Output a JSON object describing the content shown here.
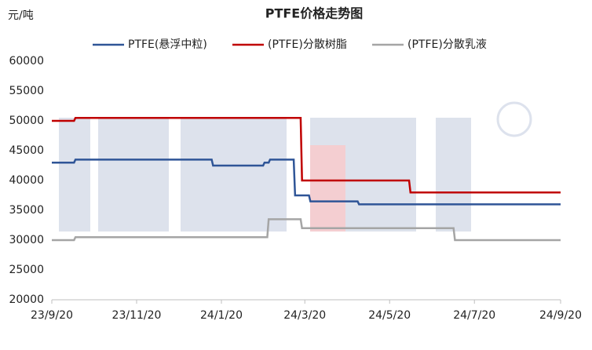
{
  "chart_data": {
    "type": "line",
    "title": "PTFE价格走势图",
    "y_label": "元/吨",
    "xlim": [
      "2023-09-20",
      "2024-09-20"
    ],
    "xticks": [
      {
        "value": "2023-09-20",
        "label": "23/9/20"
      },
      {
        "value": "2023-11-20",
        "label": "23/11/20"
      },
      {
        "value": "2024-01-20",
        "label": "24/1/20"
      },
      {
        "value": "2024-03-20",
        "label": "24/3/20"
      },
      {
        "value": "2024-05-20",
        "label": "24/5/20"
      },
      {
        "value": "2024-07-20",
        "label": "24/7/20"
      },
      {
        "value": "2024-09-20",
        "label": "24/9/20"
      }
    ],
    "ylim": [
      20000,
      60000
    ],
    "yticks": [
      20000,
      25000,
      30000,
      35000,
      40000,
      45000,
      50000,
      55000,
      60000
    ],
    "grid": false,
    "legend": "top",
    "series": [
      {
        "name": "PTFE(悬浮中粒)",
        "color": "#2f5597",
        "x": [
          "2023-09-20",
          "2023-10-06",
          "2023-10-07",
          "2024-01-13",
          "2024-01-14",
          "2024-02-19",
          "2024-02-20",
          "2024-02-23",
          "2024-02-24",
          "2024-03-12",
          "2024-03-13",
          "2024-03-23",
          "2024-03-24",
          "2024-04-27",
          "2024-04-28",
          "2024-09-20"
        ],
        "values": [
          43000,
          43000,
          43500,
          43500,
          42500,
          42500,
          43000,
          43000,
          43500,
          43500,
          37500,
          37500,
          36500,
          36500,
          36000,
          36000
        ]
      },
      {
        "name": "(PTFE)分散树脂",
        "color": "#c00000",
        "x": [
          "2023-09-20",
          "2023-10-06",
          "2023-10-07",
          "2024-03-17",
          "2024-03-18",
          "2024-06-03",
          "2024-06-04",
          "2024-09-20"
        ],
        "values": [
          50000,
          50000,
          50500,
          50500,
          40000,
          40000,
          38000,
          38000
        ]
      },
      {
        "name": "(PTFE)分散乳液",
        "color": "#a5a5a5",
        "x": [
          "2023-09-20",
          "2023-10-06",
          "2023-10-07",
          "2024-02-22",
          "2024-02-23",
          "2024-03-17",
          "2024-03-18",
          "2024-07-05",
          "2024-07-06",
          "2024-09-20"
        ],
        "values": [
          30000,
          30000,
          30500,
          30500,
          33500,
          33500,
          32000,
          32000,
          30000,
          30000
        ]
      }
    ]
  }
}
